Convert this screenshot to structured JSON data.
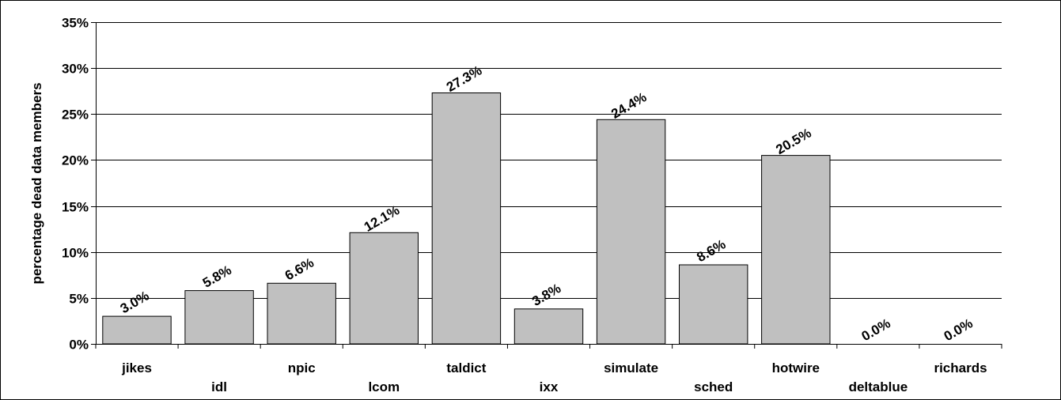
{
  "chart_data": {
    "type": "bar",
    "categories": [
      "jikes",
      "idl",
      "npic",
      "lcom",
      "taldict",
      "ixx",
      "simulate",
      "sched",
      "hotwire",
      "deltablue",
      "richards"
    ],
    "values": [
      3.0,
      5.8,
      6.6,
      12.1,
      27.3,
      3.8,
      24.4,
      8.6,
      20.5,
      0.0,
      0.0
    ],
    "data_labels": [
      "3.0%",
      "5.8%",
      "6.6%",
      "12.1%",
      "27.3%",
      "3.8%",
      "24.4%",
      "8.6%",
      "20.5%",
      "0.0%",
      "0.0%"
    ],
    "ylabel": "percentage dead data members",
    "xlabel": "",
    "ylim": [
      0,
      35
    ],
    "yticks": [
      0,
      5,
      10,
      15,
      20,
      25,
      30,
      35
    ],
    "ytick_labels": [
      "0%",
      "5%",
      "10%",
      "15%",
      "20%",
      "25%",
      "30%",
      "35%"
    ],
    "grid": true,
    "bar_color": "#c0c0c0"
  }
}
